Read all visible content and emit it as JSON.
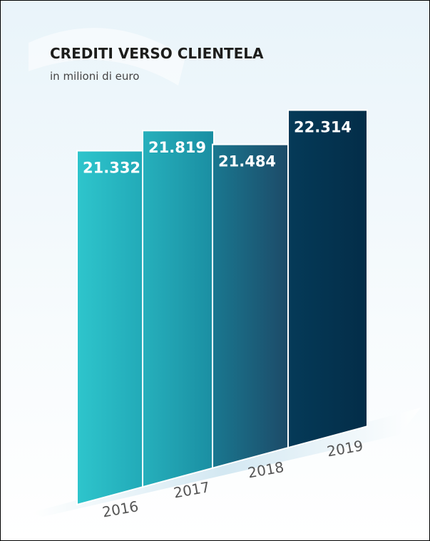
{
  "chart_data": {
    "type": "bar",
    "title": "CREDITI VERSO CLIENTELA",
    "subtitle": "in milioni di euro",
    "categories": [
      "2016",
      "2017",
      "2018",
      "2019"
    ],
    "values": [
      21332,
      21819,
      21484,
      22314
    ],
    "value_labels": [
      "21.332",
      "21.819",
      "21.484",
      "22.314"
    ],
    "colors": [
      [
        "#2ec5cc",
        "#22aab8"
      ],
      [
        "#26b0bc",
        "#1a8ea2"
      ],
      [
        "#1a7890",
        "#1c4a68"
      ],
      [
        "#053a58",
        "#032d48"
      ]
    ]
  }
}
